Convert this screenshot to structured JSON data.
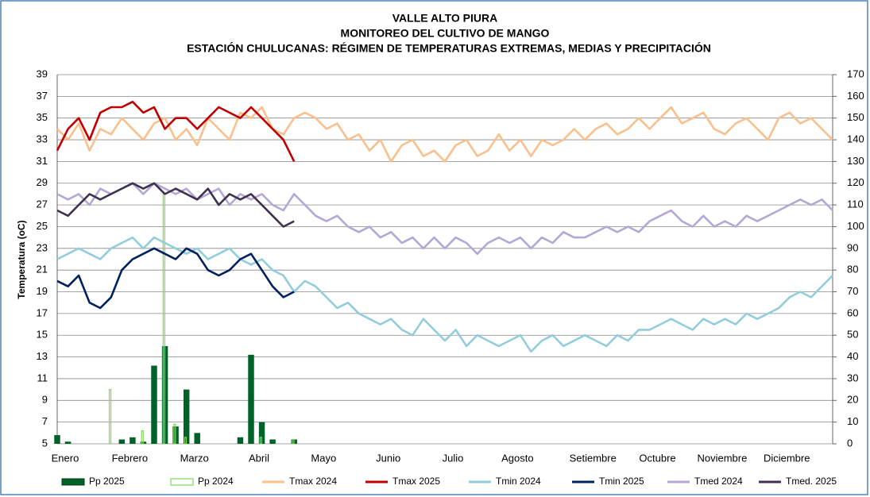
{
  "chart_data": {
    "type": "line",
    "title": [
      "VALLE  ALTO PIURA",
      "MONITOREO DEL CULTIVO DE MANGO",
      "ESTACIÓN CHULUCANAS: RÉGIMEN DE TEMPERATURAS EXTREMAS, MEDIAS Y PRECIPITACIÓN"
    ],
    "y_label": "Temperatura (oC)",
    "categories": [
      "Enero",
      null,
      null,
      null,
      null,
      null,
      "Febrero",
      null,
      null,
      null,
      null,
      null,
      "Marzo",
      null,
      null,
      null,
      null,
      null,
      "Abril",
      null,
      null,
      null,
      null,
      null,
      "Mayo",
      null,
      null,
      null,
      null,
      null,
      "Junio",
      null,
      null,
      null,
      null,
      null,
      "Julio",
      null,
      null,
      null,
      null,
      null,
      "Agosto",
      null,
      null,
      null,
      null,
      null,
      null,
      "Setiembre",
      null,
      null,
      null,
      null,
      null,
      "Octubre",
      null,
      null,
      null,
      null,
      null,
      "Noviembre",
      null,
      null,
      null,
      null,
      null,
      "Diciembre",
      null,
      null,
      null,
      null,
      null
    ],
    "ylim": [
      5,
      39
    ],
    "yticks": [
      5,
      7,
      9,
      11,
      13,
      15,
      17,
      19,
      21,
      23,
      25,
      27,
      29,
      31,
      33,
      35,
      37,
      39
    ],
    "y2lim": [
      0,
      170
    ],
    "y2ticks": [
      0,
      10,
      20,
      30,
      40,
      50,
      60,
      70,
      80,
      90,
      100,
      110,
      120,
      130,
      140,
      150,
      160,
      170
    ],
    "grid": true,
    "series": [
      {
        "name": "Pp 2025",
        "type": "bar",
        "axis": "y2",
        "color": "#006228",
        "values": [
          4,
          1,
          0,
          0,
          0,
          0,
          2,
          3,
          1,
          36,
          45,
          8,
          25,
          5,
          0,
          0,
          0,
          3,
          41,
          10,
          2,
          0,
          2,
          null,
          null,
          null,
          null,
          null,
          null,
          null,
          null,
          null,
          null,
          null,
          null,
          null,
          null,
          null,
          null,
          null,
          null,
          null,
          null,
          null,
          null,
          null,
          null,
          null,
          null,
          null,
          null,
          null,
          null,
          null,
          null,
          null,
          null,
          null,
          null,
          null,
          null,
          null,
          null,
          null,
          null,
          null,
          null,
          null,
          null,
          null,
          null,
          null,
          null
        ]
      },
      {
        "name": "Pp 2024",
        "type": "bar",
        "axis": "y2",
        "color": "#7ed957",
        "values": [
          0,
          0,
          0,
          0,
          0,
          25,
          0,
          0,
          6,
          0,
          115,
          9,
          3,
          0,
          0,
          0,
          0,
          0,
          0,
          3,
          0,
          0,
          2,
          0,
          0,
          0,
          0,
          0,
          0,
          0,
          0,
          0,
          0,
          0,
          0,
          0,
          0,
          0,
          0,
          0,
          0,
          0,
          0,
          0,
          0,
          0,
          0,
          0,
          0,
          0,
          0,
          0,
          0,
          0,
          0,
          0,
          0,
          0,
          0,
          0,
          0,
          0,
          0,
          0,
          0,
          0,
          0,
          0,
          0,
          0,
          0,
          0,
          0
        ]
      },
      {
        "name": "Tmax 2024",
        "color": "#f9c08e",
        "values": [
          34,
          33,
          34.5,
          32,
          34,
          33.5,
          35,
          34,
          33,
          34.5,
          35,
          33,
          34,
          32.5,
          35,
          34,
          33,
          35.5,
          35,
          36,
          34,
          33.5,
          35,
          35.5,
          35,
          34,
          34.5,
          33,
          33.5,
          32,
          33,
          31,
          32.5,
          33,
          31.5,
          32,
          31,
          32.5,
          33,
          31.5,
          32,
          33.5,
          32,
          33,
          31.5,
          33,
          32.5,
          33,
          34,
          33,
          34,
          34.5,
          33.5,
          34,
          35,
          34,
          35,
          36,
          34.5,
          35,
          35.5,
          34,
          33.5,
          34.5,
          35,
          34,
          33,
          35,
          35.5,
          34.5,
          35,
          34,
          33
        ]
      },
      {
        "name": "Tmax 2025",
        "color": "#c00000",
        "values": [
          32,
          34,
          35,
          33,
          35.5,
          36,
          36,
          36.5,
          35.5,
          36,
          34,
          35,
          35,
          34,
          35,
          36,
          35.5,
          35,
          36,
          35,
          34,
          33,
          31,
          null,
          null,
          null,
          null,
          null,
          null,
          null,
          null,
          null,
          null,
          null,
          null,
          null,
          null,
          null,
          null,
          null,
          null,
          null,
          null,
          null,
          null,
          null,
          null,
          null,
          null,
          null,
          null,
          null,
          null,
          null,
          null,
          null,
          null,
          null,
          null,
          null,
          null,
          null,
          null,
          null,
          null,
          null,
          null,
          null,
          null,
          null,
          null,
          null,
          null
        ]
      },
      {
        "name": "Tmin 2024",
        "color": "#92cddc",
        "values": [
          22,
          22.5,
          23,
          22.5,
          22,
          23,
          23.5,
          24,
          23,
          24,
          23.5,
          23,
          22.5,
          23,
          22,
          22.5,
          23,
          22,
          21.5,
          22,
          21,
          20.5,
          19,
          20,
          19.5,
          18.5,
          17.5,
          18,
          17,
          16.5,
          16,
          16.5,
          15.5,
          15,
          16.5,
          15.5,
          14.5,
          15.5,
          14,
          15,
          14.5,
          14,
          14.5,
          15,
          13.5,
          14.5,
          15,
          14,
          14.5,
          15,
          14.5,
          14,
          15,
          14.5,
          15.5,
          15.5,
          16,
          16.5,
          16,
          15.5,
          16.5,
          16,
          16.5,
          16,
          17,
          16.5,
          17,
          17.5,
          18.5,
          19,
          18.5,
          19.5,
          20.5
        ]
      },
      {
        "name": "Tmin 2025",
        "color": "#002060",
        "values": [
          20,
          19.5,
          20.5,
          18,
          17.5,
          18.5,
          21,
          22,
          22.5,
          23,
          22.5,
          22,
          23,
          22.5,
          21,
          20.5,
          21,
          22,
          22.5,
          21,
          19.5,
          18.5,
          19,
          null,
          null,
          null,
          null,
          null,
          null,
          null,
          null,
          null,
          null,
          null,
          null,
          null,
          null,
          null,
          null,
          null,
          null,
          null,
          null,
          null,
          null,
          null,
          null,
          null,
          null,
          null,
          null,
          null,
          null,
          null,
          null,
          null,
          null,
          null,
          null,
          null,
          null,
          null,
          null,
          null,
          null,
          null,
          null,
          null,
          null,
          null,
          null,
          null,
          null
        ]
      },
      {
        "name": "Tmed 2024",
        "color": "#b4a7d6",
        "values": [
          28,
          27.5,
          28,
          27,
          28.5,
          28,
          28.5,
          29,
          28,
          29,
          28.5,
          28,
          28.5,
          27.5,
          28,
          28.5,
          27,
          28,
          27.5,
          28,
          27,
          26.5,
          28,
          27,
          26,
          25.5,
          26,
          25,
          24.5,
          25,
          24,
          24.5,
          23.5,
          24,
          23,
          24,
          23,
          24,
          23.5,
          22.5,
          23.5,
          24,
          23.5,
          24,
          23,
          24,
          23.5,
          24.5,
          24,
          24,
          24.5,
          25,
          24.5,
          25,
          24.5,
          25.5,
          26,
          26.5,
          25.5,
          25,
          26,
          25,
          25.5,
          25,
          26,
          25.5,
          26,
          26.5,
          27,
          27.5,
          27,
          27.5,
          26.5
        ]
      },
      {
        "name": "Tmed. 2025",
        "color": "#403151",
        "values": [
          26.5,
          26,
          27,
          28,
          27.5,
          28,
          28.5,
          29,
          28.5,
          29,
          28,
          28.5,
          28,
          27.5,
          28.5,
          27,
          28,
          27.5,
          28,
          27,
          26,
          25,
          25.5,
          null,
          null,
          null,
          null,
          null,
          null,
          null,
          null,
          null,
          null,
          null,
          null,
          null,
          null,
          null,
          null,
          null,
          null,
          null,
          null,
          null,
          null,
          null,
          null,
          null,
          null,
          null,
          null,
          null,
          null,
          null,
          null,
          null,
          null,
          null,
          null,
          null,
          null,
          null,
          null,
          null,
          null,
          null,
          null,
          null,
          null,
          null,
          null,
          null,
          null
        ]
      }
    ]
  }
}
